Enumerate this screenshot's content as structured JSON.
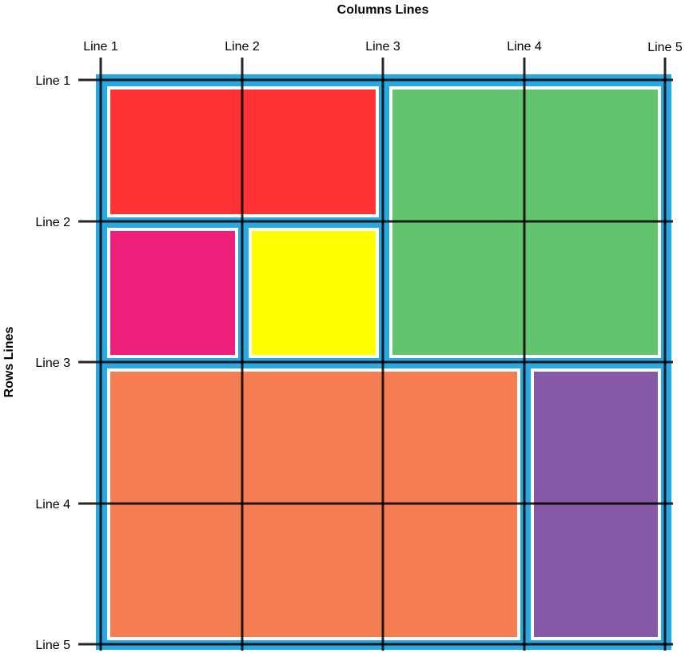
{
  "diagram": {
    "columns_title": "Columns Lines",
    "rows_title": "Rows Lines",
    "column_lines": [
      "Line 1",
      "Line 2",
      "Line 3",
      "Line 4",
      "Line 5"
    ],
    "row_lines": [
      "Line 1",
      "Line 2",
      "Line 3",
      "Line 4",
      "Line 5"
    ],
    "container_color": "#29a9e1",
    "cell_border_color": "#ffffff",
    "line_color": "#000000",
    "cells": [
      {
        "name": "red-area",
        "color": "#ff3336",
        "col_start": 1,
        "col_end": 3,
        "row_start": 1,
        "row_end": 2
      },
      {
        "name": "green-area",
        "color": "#62c46f",
        "col_start": 3,
        "col_end": 5,
        "row_start": 1,
        "row_end": 3
      },
      {
        "name": "pink-area",
        "color": "#ec207a",
        "col_start": 1,
        "col_end": 2,
        "row_start": 2,
        "row_end": 3
      },
      {
        "name": "yellow-area",
        "color": "#ffff00",
        "col_start": 2,
        "col_end": 3,
        "row_start": 2,
        "row_end": 3
      },
      {
        "name": "orange-area",
        "color": "#f47d52",
        "col_start": 1,
        "col_end": 4,
        "row_start": 3,
        "row_end": 5
      },
      {
        "name": "purple-area",
        "color": "#8559a5",
        "col_start": 4,
        "col_end": 5,
        "row_start": 3,
        "row_end": 5
      }
    ]
  }
}
